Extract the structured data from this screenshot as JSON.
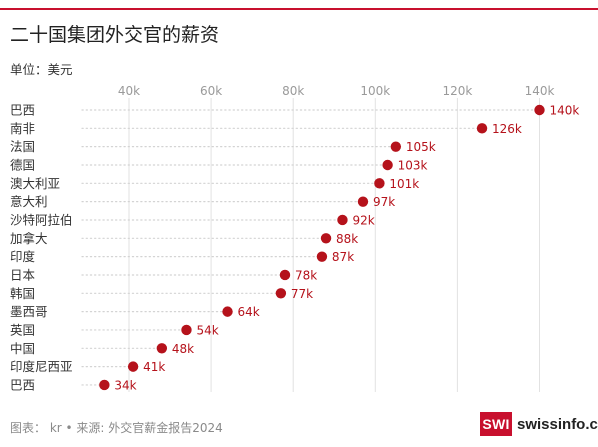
{
  "title": "二十国集团外交官的薪资",
  "unit_label": "单位：美元",
  "footer": {
    "source": "图表： kr • 来源: 外交官薪金报告2024"
  },
  "logo": {
    "mark": "SWI",
    "text": "swissinfo.ch",
    "accent_color": "#c8102e"
  },
  "chart_data": {
    "type": "scatter",
    "orientation": "horizontal-dot",
    "categories": [
      "巴西",
      "南非",
      "法国",
      "德国",
      "澳大利亚",
      "意大利",
      "沙特阿拉伯",
      "加拿大",
      "印度",
      "日本",
      "韩国",
      "墨西哥",
      "英国",
      "中国",
      "印度尼西亚",
      "巴西"
    ],
    "values": [
      140,
      126,
      105,
      103,
      101,
      97,
      92,
      88,
      87,
      78,
      77,
      64,
      54,
      48,
      41,
      34
    ],
    "value_labels": [
      "140k",
      "126k",
      "105k",
      "103k",
      "101k",
      "97k",
      "92k",
      "88k",
      "87k",
      "78k",
      "77k",
      "64k",
      "54k",
      "48k",
      "41k",
      "34k"
    ],
    "x_ticks": [
      40,
      60,
      80,
      100,
      120,
      140
    ],
    "x_tick_labels": [
      "40k",
      "60k",
      "80k",
      "100k",
      "120k",
      "140k"
    ],
    "xlim": [
      30,
      148
    ],
    "grid": true,
    "dot_color": "#b5121b",
    "label_color": "#b5121b"
  }
}
